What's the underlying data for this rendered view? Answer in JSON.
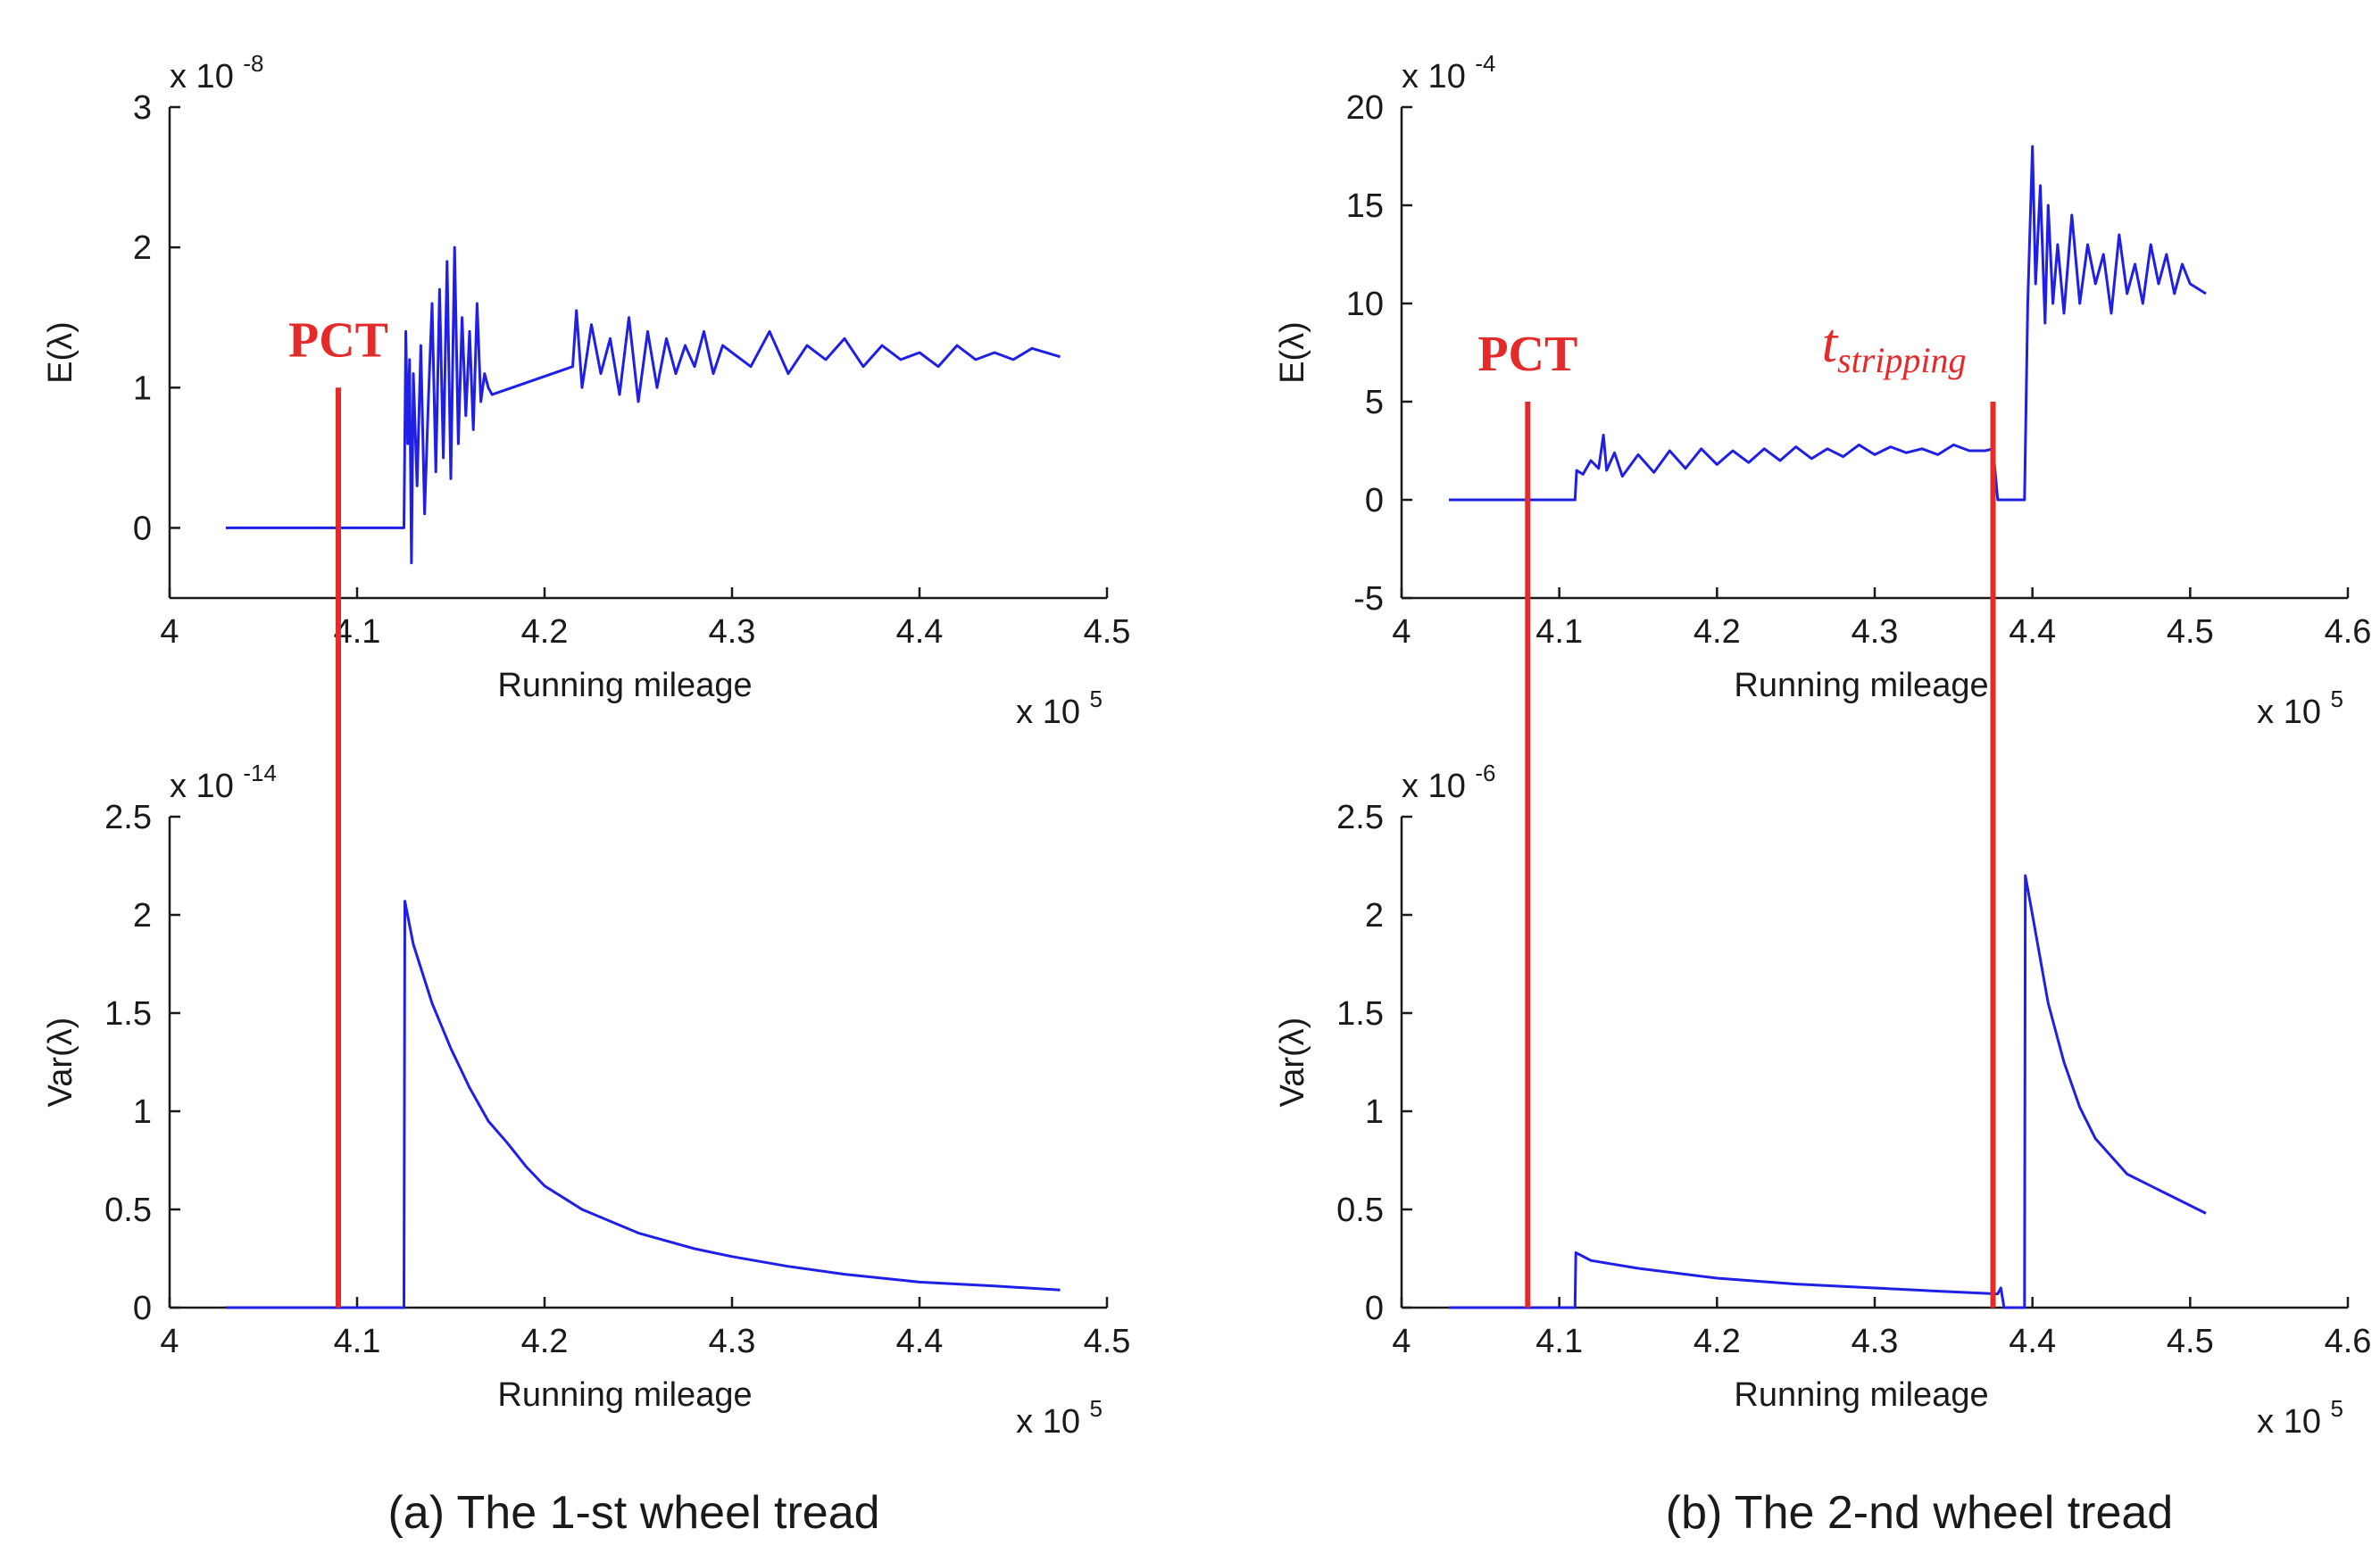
{
  "chart_data": [
    {
      "id": "a_top",
      "type": "line",
      "xlabel": "Running mileage",
      "ylabel": "E(λ)",
      "x_scale_label": "x 10",
      "x_scale_exp": "5",
      "y_scale_label": "x 10",
      "y_scale_exp": "-8",
      "xlim": [
        4.0,
        4.5
      ],
      "ylim": [
        -0.5,
        3
      ],
      "xticks": [
        "4",
        "4.1",
        "4.2",
        "4.3",
        "4.4",
        "4.5"
      ],
      "yticks": [
        "0",
        "1",
        "2",
        "3"
      ],
      "ytick_values": [
        0,
        1,
        2,
        3
      ],
      "xtick_values": [
        4.0,
        4.1,
        4.2,
        4.3,
        4.4,
        4.5
      ],
      "color": "#1f1fe6",
      "series": {
        "name": "E(λ)",
        "x": [
          4.03,
          4.125,
          4.126,
          4.127,
          4.128,
          4.129,
          4.13,
          4.132,
          4.134,
          4.136,
          4.138,
          4.14,
          4.142,
          4.144,
          4.146,
          4.148,
          4.15,
          4.152,
          4.154,
          4.156,
          4.158,
          4.16,
          4.162,
          4.164,
          4.166,
          4.168,
          4.17,
          4.172,
          4.215,
          4.217,
          4.22,
          4.225,
          4.23,
          4.235,
          4.24,
          4.245,
          4.25,
          4.255,
          4.26,
          4.265,
          4.27,
          4.275,
          4.28,
          4.285,
          4.29,
          4.295,
          4.3,
          4.31,
          4.32,
          4.33,
          4.34,
          4.35,
          4.36,
          4.37,
          4.38,
          4.39,
          4.4,
          4.41,
          4.42,
          4.43,
          4.44,
          4.45,
          4.46,
          4.475
        ],
        "y": [
          0,
          0,
          1.4,
          0.6,
          1.2,
          -0.25,
          1.1,
          0.3,
          1.3,
          0.1,
          0.9,
          1.6,
          0.4,
          1.7,
          0.5,
          1.9,
          0.35,
          2.0,
          0.6,
          1.5,
          0.8,
          1.4,
          0.7,
          1.6,
          0.9,
          1.1,
          1.0,
          0.95,
          1.15,
          1.55,
          1.0,
          1.45,
          1.1,
          1.35,
          0.95,
          1.5,
          0.9,
          1.4,
          1.0,
          1.35,
          1.1,
          1.3,
          1.15,
          1.4,
          1.1,
          1.3,
          1.25,
          1.15,
          1.4,
          1.1,
          1.3,
          1.2,
          1.35,
          1.15,
          1.3,
          1.2,
          1.25,
          1.15,
          1.3,
          1.2,
          1.25,
          1.2,
          1.28,
          1.22
        ]
      },
      "markers": [
        {
          "label": "PCT",
          "x": 4.09
        }
      ]
    },
    {
      "id": "a_bottom",
      "type": "line",
      "xlabel": "Running mileage",
      "ylabel": "Var(λ)",
      "x_scale_label": "x 10",
      "x_scale_exp": "5",
      "y_scale_label": "x 10",
      "y_scale_exp": "-14",
      "xlim": [
        4.0,
        4.5
      ],
      "ylim": [
        0,
        2.5
      ],
      "xticks": [
        "4",
        "4.1",
        "4.2",
        "4.3",
        "4.4",
        "4.5"
      ],
      "yticks": [
        "0",
        "0.5",
        "1",
        "1.5",
        "2",
        "2.5"
      ],
      "ytick_values": [
        0,
        0.5,
        1,
        1.5,
        2,
        2.5
      ],
      "xtick_values": [
        4.0,
        4.1,
        4.2,
        4.3,
        4.4,
        4.5
      ],
      "color": "#1f1fe6",
      "series": {
        "name": "Var(λ)",
        "x": [
          4.03,
          4.125,
          4.1255,
          4.13,
          4.14,
          4.15,
          4.16,
          4.17,
          4.18,
          4.19,
          4.2,
          4.22,
          4.25,
          4.28,
          4.3,
          4.33,
          4.36,
          4.4,
          4.44,
          4.475
        ],
        "y": [
          0,
          0,
          2.07,
          1.85,
          1.55,
          1.32,
          1.12,
          0.95,
          0.84,
          0.72,
          0.62,
          0.5,
          0.38,
          0.3,
          0.26,
          0.21,
          0.17,
          0.13,
          0.11,
          0.09
        ]
      },
      "markers": [
        {
          "label": "",
          "x": 4.09
        }
      ]
    },
    {
      "id": "b_top",
      "type": "line",
      "xlabel": "Running mileage",
      "ylabel": "E(λ)",
      "x_scale_label": "x 10",
      "x_scale_exp": "5",
      "y_scale_label": "x 10",
      "y_scale_exp": "-4",
      "xlim": [
        4.0,
        4.6
      ],
      "ylim": [
        -5,
        20
      ],
      "xticks": [
        "4",
        "4.1",
        "4.2",
        "4.3",
        "4.4",
        "4.5",
        "4.6"
      ],
      "yticks": [
        "-5",
        "0",
        "5",
        "10",
        "15",
        "20"
      ],
      "ytick_values": [
        -5,
        0,
        5,
        10,
        15,
        20
      ],
      "xtick_values": [
        4.0,
        4.1,
        4.2,
        4.3,
        4.4,
        4.5,
        4.6
      ],
      "color": "#1f1fe6",
      "series": {
        "name": "E(λ)",
        "x": [
          4.03,
          4.11,
          4.111,
          4.115,
          4.12,
          4.125,
          4.128,
          4.13,
          4.135,
          4.14,
          4.15,
          4.16,
          4.17,
          4.18,
          4.19,
          4.2,
          4.21,
          4.22,
          4.23,
          4.24,
          4.25,
          4.26,
          4.27,
          4.28,
          4.29,
          4.3,
          4.31,
          4.32,
          4.33,
          4.34,
          4.35,
          4.36,
          4.37,
          4.375,
          4.378,
          4.38,
          4.39,
          4.395,
          4.397,
          4.4,
          4.402,
          4.405,
          4.408,
          4.41,
          4.413,
          4.416,
          4.42,
          4.425,
          4.43,
          4.435,
          4.44,
          4.445,
          4.45,
          4.455,
          4.46,
          4.465,
          4.47,
          4.475,
          4.48,
          4.485,
          4.49,
          4.495,
          4.5,
          4.51
        ],
        "y": [
          0,
          0,
          1.5,
          1.3,
          2.0,
          1.6,
          3.3,
          1.5,
          2.4,
          1.2,
          2.3,
          1.4,
          2.5,
          1.6,
          2.6,
          1.8,
          2.5,
          1.9,
          2.6,
          2.0,
          2.7,
          2.1,
          2.6,
          2.2,
          2.8,
          2.3,
          2.7,
          2.4,
          2.6,
          2.3,
          2.8,
          2.5,
          2.5,
          2.6,
          0,
          0,
          0,
          0,
          10,
          18,
          11,
          16,
          9,
          15,
          10,
          13,
          9.5,
          14.5,
          10,
          13,
          11,
          12.5,
          9.5,
          13.5,
          10.5,
          12,
          10,
          13,
          11,
          12.5,
          10.5,
          12,
          11,
          10.5
        ]
      },
      "markers": [
        {
          "label": "PCT",
          "x": 4.08
        },
        {
          "label": "t",
          "label_sub": "stripping",
          "x": 4.375
        }
      ]
    },
    {
      "id": "b_bottom",
      "type": "line",
      "xlabel": "Running mileage",
      "ylabel": "Var(λ)",
      "x_scale_label": "x 10",
      "x_scale_exp": "5",
      "y_scale_label": "x 10",
      "y_scale_exp": "-6",
      "xlim": [
        4.0,
        4.6
      ],
      "ylim": [
        0,
        2.5
      ],
      "xticks": [
        "4",
        "4.1",
        "4.2",
        "4.3",
        "4.4",
        "4.5",
        "4.6"
      ],
      "yticks": [
        "0",
        "0.5",
        "1",
        "1.5",
        "2",
        "2.5"
      ],
      "ytick_values": [
        0,
        0.5,
        1,
        1.5,
        2,
        2.5
      ],
      "xtick_values": [
        4.0,
        4.1,
        4.2,
        4.3,
        4.4,
        4.5,
        4.6
      ],
      "color": "#1f1fe6",
      "series": {
        "name": "Var(λ)",
        "x": [
          4.03,
          4.11,
          4.1105,
          4.12,
          4.15,
          4.2,
          4.25,
          4.3,
          4.35,
          4.378,
          4.38,
          4.382,
          4.395,
          4.3955,
          4.4,
          4.41,
          4.42,
          4.43,
          4.44,
          4.46,
          4.48,
          4.51
        ],
        "y": [
          0,
          0,
          0.28,
          0.24,
          0.2,
          0.15,
          0.12,
          0.1,
          0.08,
          0.07,
          0.1,
          0,
          0,
          2.2,
          2.0,
          1.55,
          1.25,
          1.02,
          0.86,
          0.68,
          0.6,
          0.48
        ]
      },
      "markers": [
        {
          "label": "",
          "x": 4.08
        },
        {
          "label": "",
          "x": 4.375
        }
      ]
    }
  ],
  "captions": {
    "a": "(a) The 1-st wheel tread",
    "b": "(b) The 2-nd wheel tread"
  },
  "colors": {
    "line": "#1f1fe6",
    "marker": "#e52a2a",
    "axis": "#1a1a1a"
  }
}
